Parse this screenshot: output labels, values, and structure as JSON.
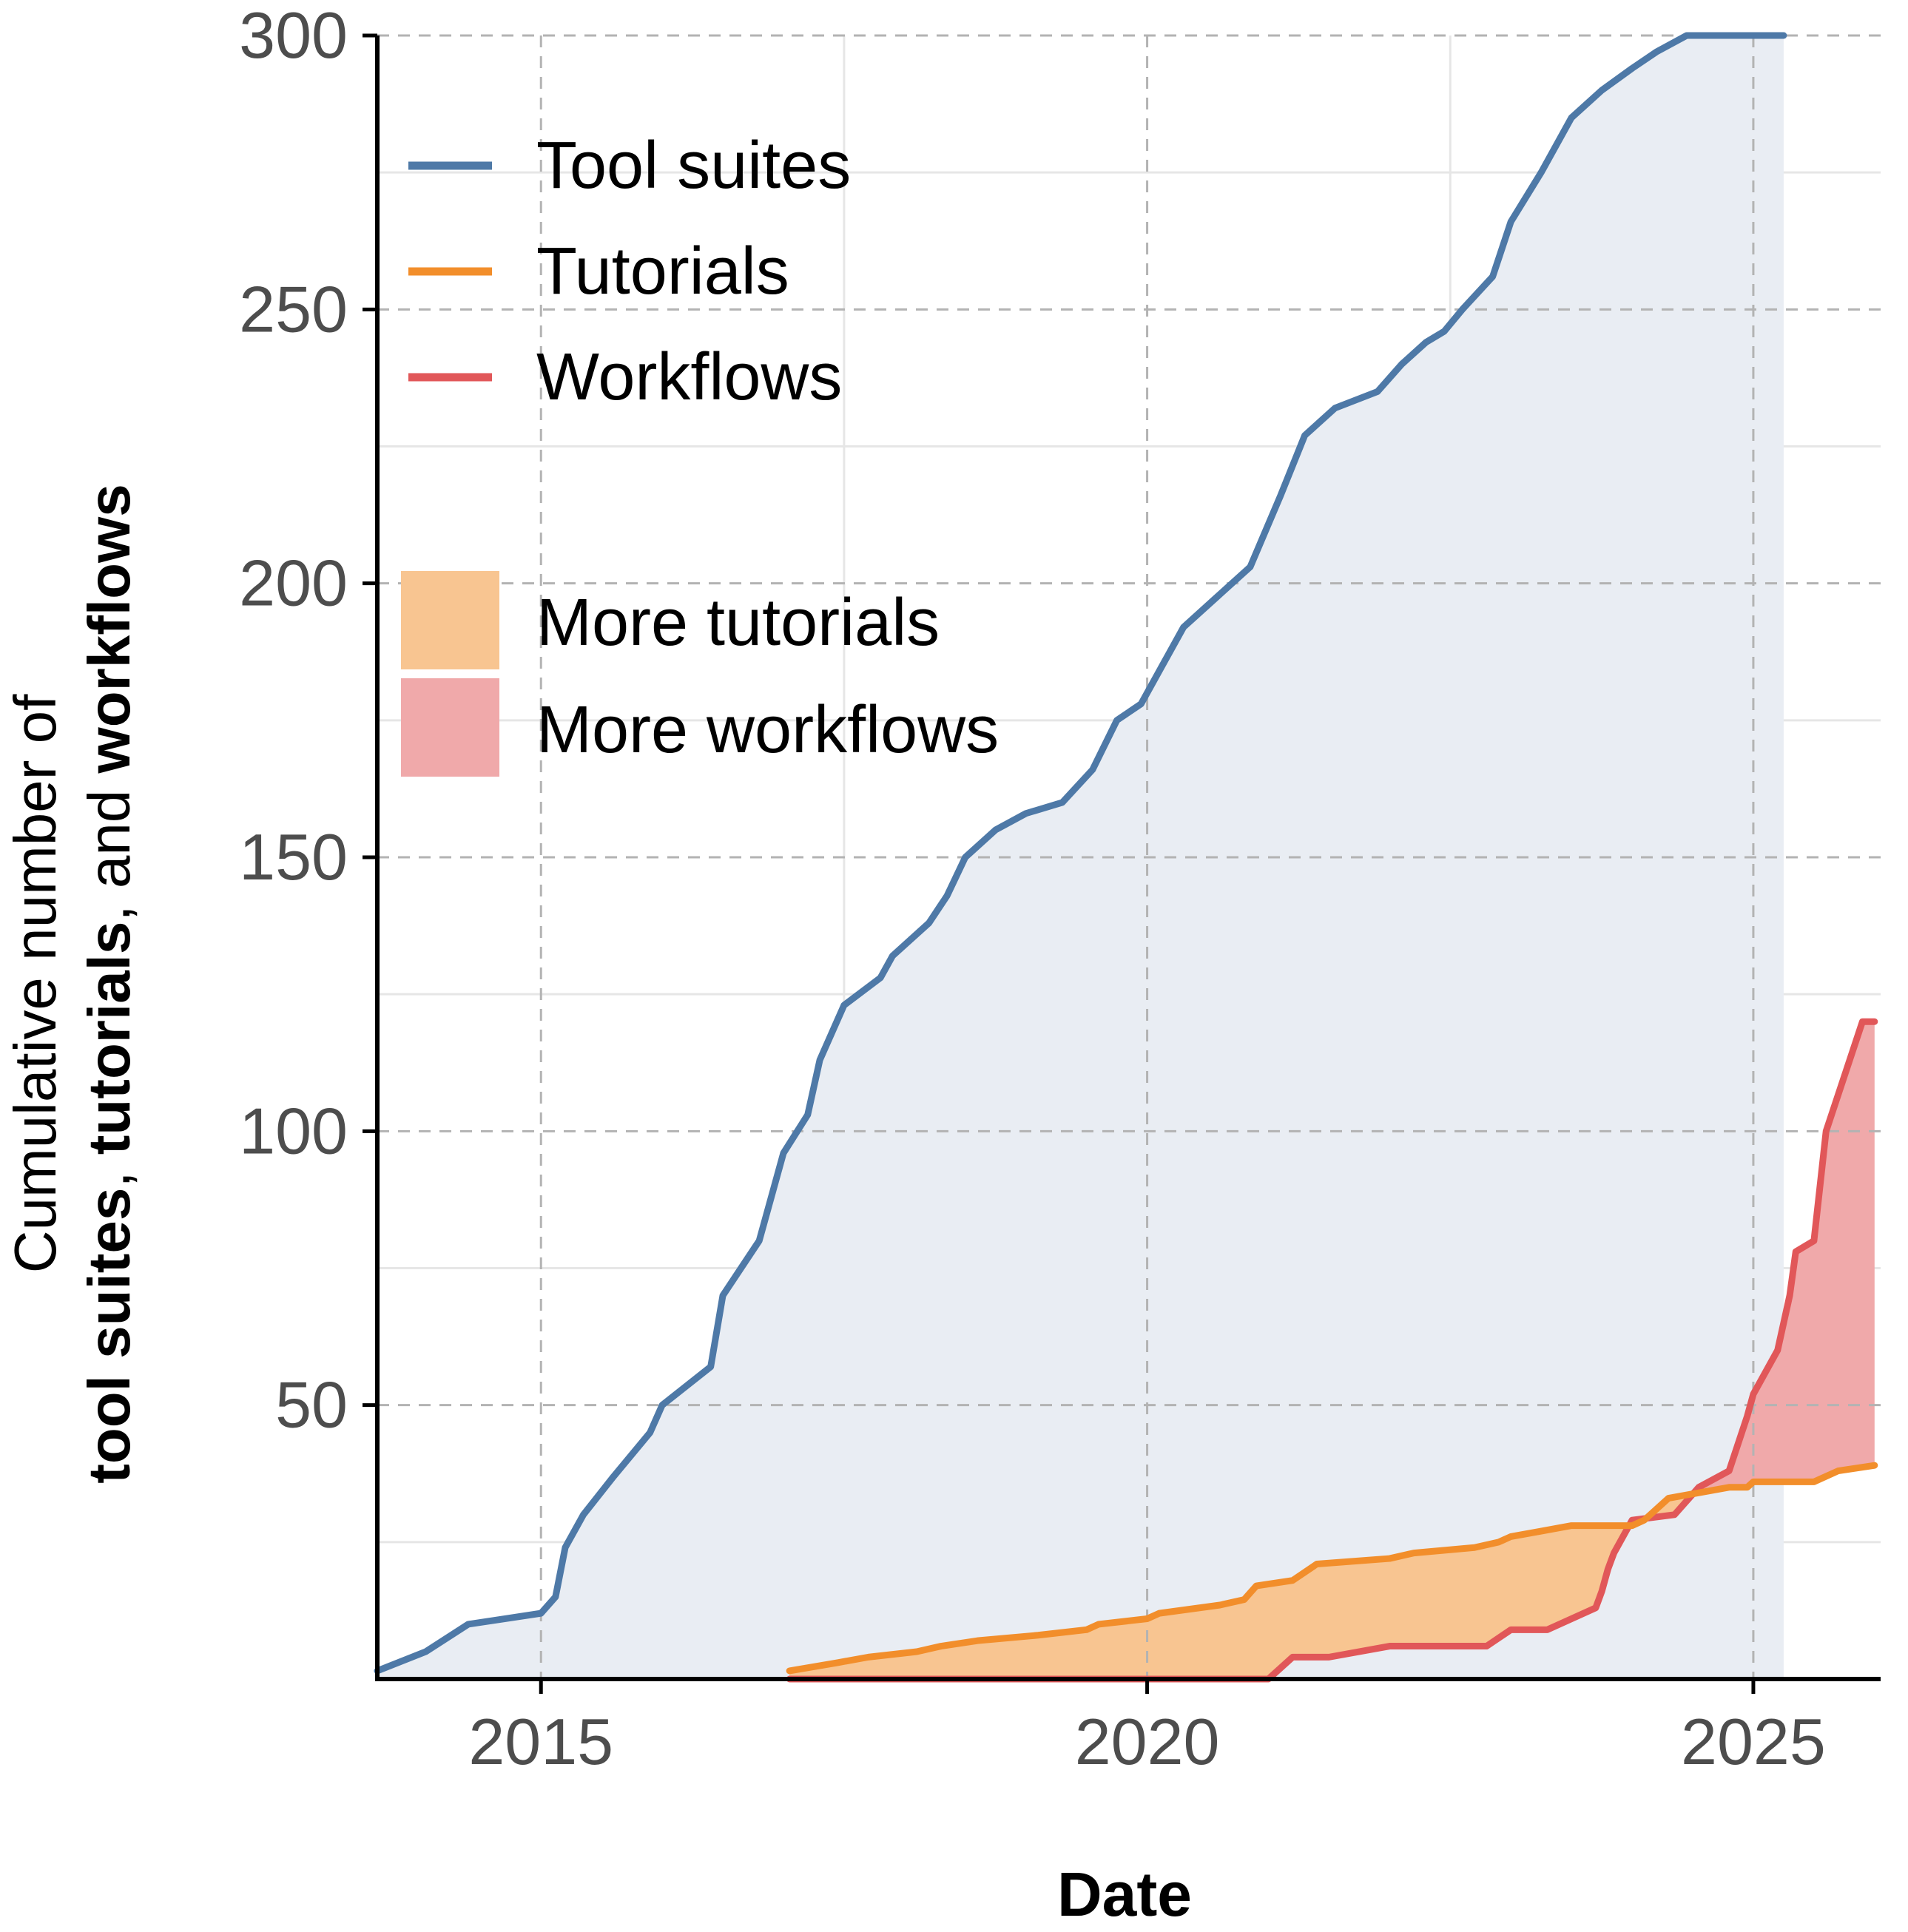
{
  "chart_data": {
    "type": "line",
    "xlabel": "Date",
    "ylabel_line1": "Cumulative number of",
    "ylabel_line2_parts": [
      {
        "text": "tool suites",
        "bold": true
      },
      {
        "text": ", ",
        "bold": false
      },
      {
        "text": "tutorials",
        "bold": true
      },
      {
        "text": ", and ",
        "bold": false
      },
      {
        "text": "workflows",
        "bold": true
      }
    ],
    "xlim": [
      2013.65,
      2026.05
    ],
    "ylim": [
      0,
      300
    ],
    "x_ticks": [
      2015,
      2020,
      2025
    ],
    "x_tick_labels": [
      "2015",
      "2020",
      "2025"
    ],
    "y_ticks": [
      50,
      100,
      150,
      200,
      250,
      300
    ],
    "y_tick_labels": [
      "50",
      "100",
      "150",
      "200",
      "250",
      "300"
    ],
    "grid": true,
    "legend_position": "top-left",
    "series": [
      {
        "name": "Tool suites",
        "color": "#4e79a7",
        "x": [
          2013.65,
          2014.05,
          2014.4,
          2014.7,
          2015.0,
          2015.12,
          2015.2,
          2015.35,
          2015.6,
          2015.9,
          2016.0,
          2016.4,
          2016.5,
          2016.8,
          2017.0,
          2017.2,
          2017.3,
          2017.5,
          2017.8,
          2017.9,
          2018.2,
          2018.35,
          2018.5,
          2018.75,
          2019.0,
          2019.3,
          2019.55,
          2019.75,
          2019.95,
          2020.15,
          2020.3,
          2020.55,
          2020.85,
          2021.1,
          2021.3,
          2021.55,
          2021.9,
          2022.1,
          2022.3,
          2022.45,
          2022.6,
          2022.85,
          2023.0,
          2023.25,
          2023.5,
          2023.75,
          2024.0,
          2024.2,
          2024.45,
          2024.6,
          2024.75,
          2024.9,
          2025.1,
          2025.25
        ],
        "values": [
          1.5,
          5,
          10,
          11,
          12,
          15,
          24,
          30,
          37,
          45,
          50,
          57,
          70,
          80,
          96,
          103,
          113,
          123,
          128,
          132,
          138,
          143,
          150,
          155,
          158,
          160,
          166,
          175,
          178,
          186,
          192,
          197,
          203,
          216,
          227,
          232,
          235,
          240,
          244,
          246,
          250,
          256,
          266,
          275,
          285,
          290,
          294,
          297,
          300,
          300,
          300,
          300,
          300,
          300
        ]
      },
      {
        "name": "Tutorials",
        "color": "#f28e2b",
        "x": [
          2017.05,
          2017.45,
          2017.7,
          2018.1,
          2018.3,
          2018.6,
          2019.1,
          2019.5,
          2019.6,
          2020.0,
          2020.1,
          2020.6,
          2020.8,
          2020.9,
          2021.2,
          2021.4,
          2022.0,
          2022.2,
          2022.7,
          2022.9,
          2023.0,
          2023.25,
          2023.5,
          2023.8,
          2024.0,
          2024.1,
          2024.15,
          2024.3,
          2024.8,
          2024.95,
          2025.0,
          2025.2,
          2025.5,
          2025.7,
          2026.0
        ],
        "values": [
          1.5,
          3,
          4,
          5,
          6,
          7,
          8,
          9,
          10,
          11,
          12,
          13.5,
          14.5,
          17,
          18,
          21,
          22,
          23,
          24,
          25,
          26,
          27,
          28,
          28,
          28,
          29,
          30,
          33,
          35,
          35,
          36,
          36,
          36,
          38,
          39
        ]
      },
      {
        "name": "Workflows",
        "color": "#e15759",
        "x": [
          2017.05,
          2017.5,
          2018.0,
          2018.5,
          2019.0,
          2019.5,
          2020.0,
          2020.5,
          2021.0,
          2021.2,
          2021.5,
          2022.0,
          2022.5,
          2022.8,
          2023.0,
          2023.3,
          2023.7,
          2023.75,
          2023.8,
          2023.85,
          2024.0,
          2024.35,
          2024.55,
          2024.8,
          2024.95,
          2025.0,
          2025.1,
          2025.2,
          2025.3,
          2025.35,
          2025.5,
          2025.55,
          2025.6,
          2025.75,
          2025.9,
          2026.0
        ],
        "values": [
          0,
          0,
          0,
          0,
          0,
          0,
          0,
          0,
          0,
          4,
          4,
          6,
          6,
          6,
          9,
          9,
          13,
          16,
          20,
          23,
          29,
          30,
          35,
          38,
          48,
          52,
          56,
          60,
          70,
          78,
          80,
          90,
          100,
          110,
          120,
          120
        ]
      }
    ],
    "shaded_areas": [
      {
        "name": "More tutorials",
        "color": "#f8c591"
      },
      {
        "name": "More workflows",
        "color": "#f0a9aa"
      }
    ],
    "area_under_tool_suites_color": "#e9edf3"
  }
}
